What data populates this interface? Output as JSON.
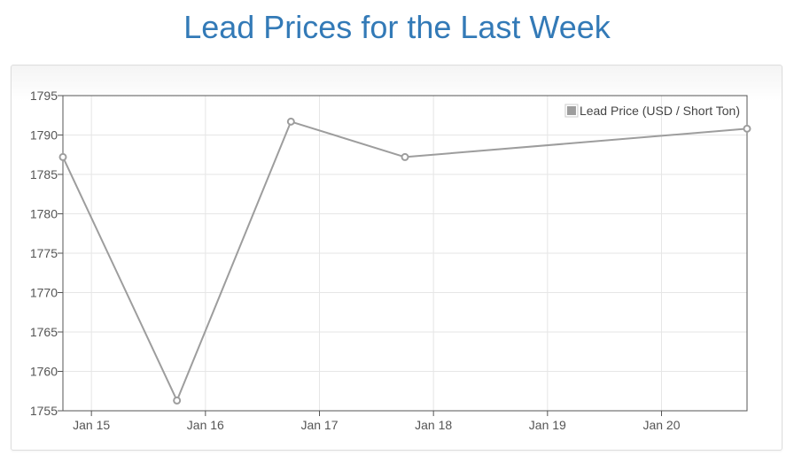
{
  "page": {
    "title": "Lead Prices for the Last Week"
  },
  "chart_data": {
    "type": "line",
    "title": "Lead Prices for the Last Week",
    "xlabel": "",
    "ylabel": "",
    "x_ticks": [
      "Jan 15",
      "Jan 16",
      "Jan 17",
      "Jan 18",
      "Jan 19",
      "Jan 20"
    ],
    "y_ticks": [
      1755,
      1760,
      1765,
      1770,
      1775,
      1780,
      1785,
      1790,
      1795
    ],
    "ylim": [
      1755,
      1795
    ],
    "xlim": [
      "2018-01-14 18:00",
      "2018-01-20 18:00"
    ],
    "grid": true,
    "legend_position": "top-right",
    "series": [
      {
        "name": "Lead Price (USD / Short Ton)",
        "color": "#9d9d9d",
        "points": [
          {
            "x": "Jan 14 18:00",
            "y": 1787.2
          },
          {
            "x": "Jan 15 18:00",
            "y": 1756.3
          },
          {
            "x": "Jan 16 18:00",
            "y": 1791.7
          },
          {
            "x": "Jan 17 18:00",
            "y": 1787.2
          },
          {
            "x": "Jan 20 18:00",
            "y": 1790.8
          }
        ]
      }
    ]
  }
}
